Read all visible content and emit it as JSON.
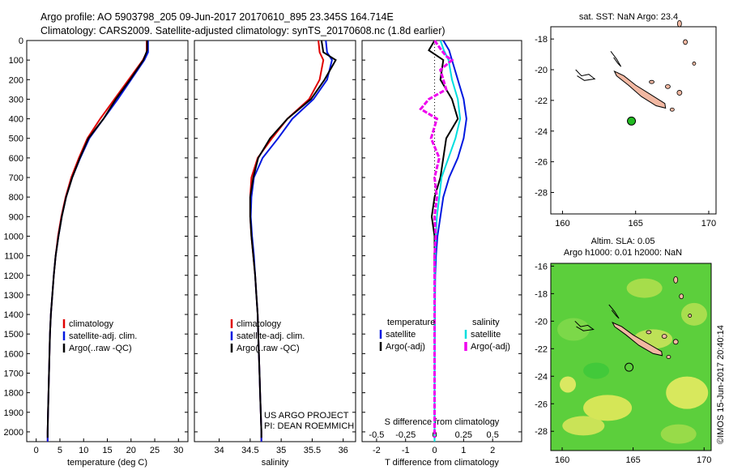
{
  "header": {
    "line1": "Argo profile: AO 5903798_205 09-Jun-2017 20170610_895 23.345S 164.714E",
    "line2": "Climatology: CARS2009. Satellite-adjusted climatology: synTS_20170608.nc (1.8d earlier)"
  },
  "colors": {
    "climatology": "#e00000",
    "satellite": "#0018e0",
    "argo": "#000000",
    "sal_satellite": "#00dede",
    "sal_argo": "#ee00ee",
    "land": "#f2b8a2",
    "marker": "#22bb22"
  },
  "chart_data": [
    {
      "type": "line",
      "xlabel": "temperature (deg C)",
      "ylabel": "",
      "xlim": [
        -2,
        32
      ],
      "ylim": [
        2050,
        0
      ],
      "xticks": [
        "0",
        "5",
        "10",
        "15",
        "20",
        "25",
        "30"
      ],
      "yticks": [
        "0",
        "100",
        "200",
        "300",
        "400",
        "500",
        "600",
        "700",
        "800",
        "900",
        "1000",
        "1100",
        "1200",
        "1300",
        "1400",
        "1500",
        "1600",
        "1700",
        "1800",
        "1900",
        "2000"
      ],
      "legend": [
        "climatology",
        "satellite-adj. clim.",
        "Argo(..raw -QC)"
      ],
      "series": [
        {
          "name": "climatology",
          "points": [
            [
              23.3,
              0
            ],
            [
              23.3,
              60
            ],
            [
              22.5,
              100
            ],
            [
              19.5,
              200
            ],
            [
              16.5,
              300
            ],
            [
              13.5,
              400
            ],
            [
              10.8,
              500
            ],
            [
              9.0,
              600
            ],
            [
              7.4,
              700
            ],
            [
              6.2,
              800
            ],
            [
              5.3,
              900
            ],
            [
              4.6,
              1000
            ],
            [
              4.1,
              1100
            ],
            [
              3.7,
              1200
            ],
            [
              3.4,
              1300
            ],
            [
              3.1,
              1400
            ],
            [
              2.9,
              1500
            ],
            [
              2.8,
              1600
            ],
            [
              2.7,
              1700
            ],
            [
              2.6,
              1800
            ],
            [
              2.5,
              1900
            ],
            [
              2.4,
              2000
            ],
            [
              2.4,
              2050
            ]
          ]
        },
        {
          "name": "satellite-adj. clim.",
          "points": [
            [
              23.6,
              0
            ],
            [
              23.6,
              60
            ],
            [
              22.8,
              100
            ],
            [
              20.0,
              200
            ],
            [
              17.2,
              300
            ],
            [
              14.2,
              400
            ],
            [
              11.2,
              500
            ],
            [
              9.3,
              600
            ],
            [
              7.6,
              700
            ],
            [
              6.3,
              800
            ],
            [
              5.4,
              900
            ],
            [
              4.7,
              1000
            ],
            [
              4.1,
              1100
            ],
            [
              3.7,
              1200
            ],
            [
              3.4,
              1300
            ],
            [
              3.1,
              1400
            ],
            [
              2.9,
              1500
            ],
            [
              2.8,
              1600
            ],
            [
              2.7,
              1700
            ],
            [
              2.6,
              1800
            ],
            [
              2.5,
              1900
            ],
            [
              2.4,
              2000
            ],
            [
              2.4,
              2050
            ]
          ]
        },
        {
          "name": "Argo(..raw -QC)",
          "points": [
            [
              23.4,
              0
            ],
            [
              23.4,
              50
            ],
            [
              22.6,
              100
            ],
            [
              19.8,
              200
            ],
            [
              16.8,
              300
            ],
            [
              14.2,
              400
            ],
            [
              11.0,
              500
            ],
            [
              9.2,
              600
            ],
            [
              7.6,
              700
            ],
            [
              6.3,
              800
            ],
            [
              5.4,
              900
            ],
            [
              4.7,
              1000
            ],
            [
              4.1,
              1100
            ],
            [
              3.7,
              1200
            ],
            [
              3.4,
              1300
            ],
            [
              3.1,
              1400
            ],
            [
              2.9,
              1500
            ],
            [
              2.8,
              1600
            ],
            [
              2.7,
              1700
            ],
            [
              2.6,
              1800
            ],
            [
              2.5,
              1900
            ],
            [
              2.4,
              2000
            ],
            [
              2.4,
              2030
            ]
          ]
        }
      ]
    },
    {
      "type": "line",
      "xlabel": "salinity",
      "xlim": [
        33.6,
        36.2
      ],
      "ylim": [
        2050,
        0
      ],
      "xticks": [
        "34",
        "34.5",
        "35",
        "35.5",
        "36"
      ],
      "legend": [
        "climatology",
        "satellite-adj. clim.",
        "Argo(..raw -QC)"
      ],
      "annotation": [
        "US ARGO PROJECT",
        "PI: DEAN ROEMMICH"
      ],
      "series": [
        {
          "name": "climatology",
          "points": [
            [
              35.6,
              0
            ],
            [
              35.62,
              60
            ],
            [
              35.68,
              100
            ],
            [
              35.62,
              200
            ],
            [
              35.45,
              300
            ],
            [
              35.1,
              400
            ],
            [
              34.85,
              500
            ],
            [
              34.62,
              600
            ],
            [
              34.52,
              700
            ],
            [
              34.5,
              800
            ],
            [
              34.5,
              900
            ],
            [
              34.52,
              1000
            ],
            [
              34.55,
              1100
            ],
            [
              34.58,
              1200
            ],
            [
              34.6,
              1300
            ],
            [
              34.62,
              1400
            ],
            [
              34.63,
              1500
            ],
            [
              34.64,
              1600
            ],
            [
              34.65,
              1700
            ],
            [
              34.66,
              1800
            ],
            [
              34.67,
              1900
            ],
            [
              34.68,
              2000
            ],
            [
              34.68,
              2050
            ]
          ]
        },
        {
          "name": "satellite-adj. clim.",
          "points": [
            [
              35.72,
              0
            ],
            [
              35.74,
              60
            ],
            [
              35.82,
              100
            ],
            [
              35.74,
              200
            ],
            [
              35.52,
              300
            ],
            [
              35.18,
              400
            ],
            [
              34.95,
              500
            ],
            [
              34.7,
              600
            ],
            [
              34.56,
              700
            ],
            [
              34.52,
              800
            ],
            [
              34.51,
              900
            ],
            [
              34.53,
              1000
            ],
            [
              34.56,
              1100
            ],
            [
              34.58,
              1200
            ],
            [
              34.6,
              1300
            ],
            [
              34.62,
              1400
            ],
            [
              34.63,
              1500
            ],
            [
              34.64,
              1600
            ],
            [
              34.65,
              1700
            ],
            [
              34.66,
              1800
            ],
            [
              34.67,
              1900
            ],
            [
              34.68,
              2000
            ],
            [
              34.68,
              2050
            ]
          ]
        },
        {
          "name": "Argo(..raw -QC)",
          "points": [
            [
              35.65,
              0
            ],
            [
              35.68,
              60
            ],
            [
              35.78,
              80
            ],
            [
              35.88,
              100
            ],
            [
              35.7,
              200
            ],
            [
              35.48,
              300
            ],
            [
              35.1,
              400
            ],
            [
              34.82,
              500
            ],
            [
              34.63,
              600
            ],
            [
              34.55,
              700
            ],
            [
              34.5,
              800
            ],
            [
              34.5,
              900
            ],
            [
              34.52,
              1000
            ],
            [
              34.55,
              1100
            ],
            [
              34.58,
              1200
            ],
            [
              34.6,
              1300
            ],
            [
              34.62,
              1400
            ],
            [
              34.63,
              1500
            ],
            [
              34.64,
              1600
            ],
            [
              34.65,
              1700
            ],
            [
              34.66,
              1800
            ],
            [
              34.67,
              1900
            ],
            [
              34.68,
              2000
            ],
            [
              34.68,
              2030
            ]
          ]
        }
      ]
    },
    {
      "type": "line",
      "xlabel": "T difference from climatology",
      "x2label": "S difference from climatology",
      "xlim": [
        -2.5,
        3.0
      ],
      "x2lim": [
        -0.625,
        0.75
      ],
      "ylim": [
        2050,
        0
      ],
      "xticks": [
        "-2",
        "-1",
        "0",
        "1",
        "2"
      ],
      "x2ticks": [
        "-0.5",
        "-0.25",
        "0",
        "0.25",
        "0.5"
      ],
      "legend": [
        "temperature",
        "satellite",
        "Argo(-adj)",
        "salinity",
        "satellite",
        "Argo(-adj)"
      ],
      "series": [
        {
          "name": "satellite",
          "axis": "T",
          "points": [
            [
              0.3,
              0
            ],
            [
              0.5,
              50
            ],
            [
              0.6,
              100
            ],
            [
              0.8,
              200
            ],
            [
              1.0,
              300
            ],
            [
              1.1,
              400
            ],
            [
              1.0,
              500
            ],
            [
              0.8,
              600
            ],
            [
              0.5,
              700
            ],
            [
              0.3,
              800
            ],
            [
              0.2,
              900
            ],
            [
              0.1,
              1000
            ],
            [
              0.05,
              1100
            ],
            [
              0.02,
              1200
            ],
            [
              0.01,
              1400
            ],
            [
              0,
              1800
            ],
            [
              0,
              2050
            ]
          ]
        },
        {
          "name": "Argo(-adj)",
          "axis": "T",
          "points": [
            [
              0,
              0
            ],
            [
              -0.2,
              50
            ],
            [
              0.3,
              100
            ],
            [
              0.2,
              200
            ],
            [
              0.6,
              300
            ],
            [
              0.8,
              400
            ],
            [
              0.4,
              500
            ],
            [
              0.3,
              600
            ],
            [
              0.2,
              700
            ],
            [
              0.0,
              800
            ],
            [
              -0.1,
              900
            ],
            [
              0,
              1000
            ],
            [
              0,
              1100
            ],
            [
              0,
              1200
            ],
            [
              0,
              1400
            ],
            [
              0,
              1800
            ],
            [
              0,
              2030
            ]
          ]
        },
        {
          "name": "satellite",
          "axis": "S",
          "points": [
            [
              0.05,
              0
            ],
            [
              0.08,
              50
            ],
            [
              0.12,
              100
            ],
            [
              0.15,
              200
            ],
            [
              0.2,
              300
            ],
            [
              0.22,
              400
            ],
            [
              0.18,
              500
            ],
            [
              0.12,
              600
            ],
            [
              0.06,
              700
            ],
            [
              0.04,
              800
            ],
            [
              0.02,
              900
            ],
            [
              0.01,
              1000
            ],
            [
              0,
              1200
            ],
            [
              0,
              1600
            ],
            [
              0,
              2050
            ]
          ]
        },
        {
          "name": "Argo(-adj)",
          "axis": "S",
          "points": [
            [
              0,
              0
            ],
            [
              0.06,
              50
            ],
            [
              0.1,
              80
            ],
            [
              0.15,
              100
            ],
            [
              0.05,
              150
            ],
            [
              0.1,
              250
            ],
            [
              -0.05,
              300
            ],
            [
              -0.12,
              350
            ],
            [
              0.02,
              400
            ],
            [
              -0.03,
              500
            ],
            [
              0.04,
              600
            ],
            [
              0.0,
              700
            ],
            [
              0.02,
              800
            ],
            [
              0.0,
              900
            ],
            [
              0.01,
              1000
            ],
            [
              0,
              1100
            ],
            [
              0,
              1200
            ],
            [
              0,
              1600
            ],
            [
              0,
              2030
            ]
          ]
        }
      ]
    },
    {
      "type": "map",
      "title": "sat. SST: NaN Argo: 23.4",
      "xlim": [
        159.2,
        170.5
      ],
      "ylim": [
        -29.4,
        -17.2
      ],
      "xticks": [
        "160",
        "165",
        "170"
      ],
      "yticks": [
        "-18",
        "-20",
        "-22",
        "-24",
        "-26",
        "-28"
      ],
      "marker": {
        "lon": 164.714,
        "lat": -23.345
      }
    },
    {
      "type": "heatmap",
      "title": "Altim. SLA: 0.05",
      "subtitle": "Argo h1000: 0.01 h2000: NaN",
      "xlim": [
        159.2,
        170.5
      ],
      "ylim": [
        -29.4,
        -15.8
      ],
      "xticks": [
        "160",
        "165",
        "170"
      ],
      "yticks": [
        "-16",
        "-18",
        "-20",
        "-22",
        "-24",
        "-26",
        "-28"
      ],
      "marker": {
        "lon": 164.714,
        "lat": -23.345
      }
    }
  ],
  "side_caption": "©IMOS 15-Jun-2017 20:40:14"
}
